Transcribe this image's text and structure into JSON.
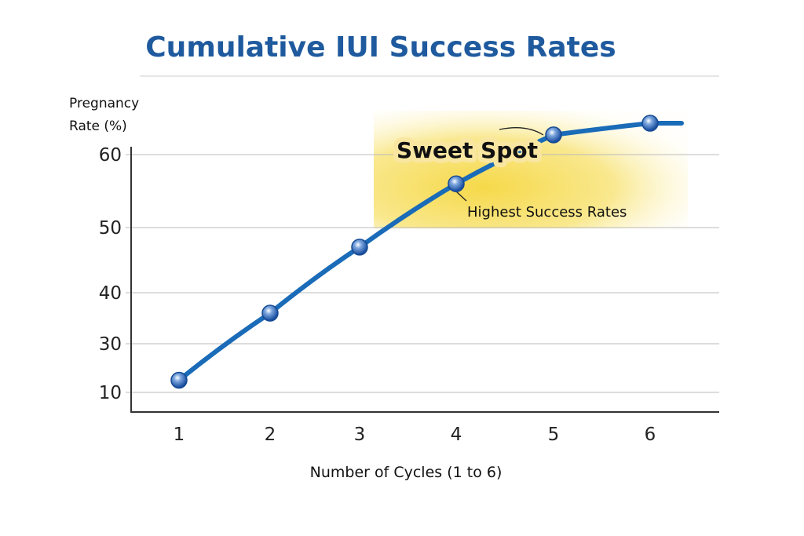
{
  "chart_data": {
    "type": "line",
    "title": "Cumulative IUI Success Rates",
    "ylabel_line1": "Pregnancy",
    "ylabel_line2": "Rate (%)",
    "xlabel": "Number of Cycles (1 to 6)",
    "x_ticks": [
      "1",
      "2",
      "3",
      "4",
      "5",
      "6"
    ],
    "y_ticks": [
      "10",
      "30",
      "40",
      "50",
      "60"
    ],
    "grid": "horizontal",
    "x": [
      1,
      2,
      3,
      4,
      5,
      6
    ],
    "values": [
      15,
      36,
      47,
      56,
      62.7,
      64.3
    ],
    "line_color": "#1a6bb8",
    "highlight": {
      "label": "Sweet Spot",
      "annotation": "Highest Success Rates",
      "color": "#f7dc5a",
      "x_range": [
        3.1,
        5.9
      ],
      "y_range": [
        50,
        65
      ]
    }
  }
}
